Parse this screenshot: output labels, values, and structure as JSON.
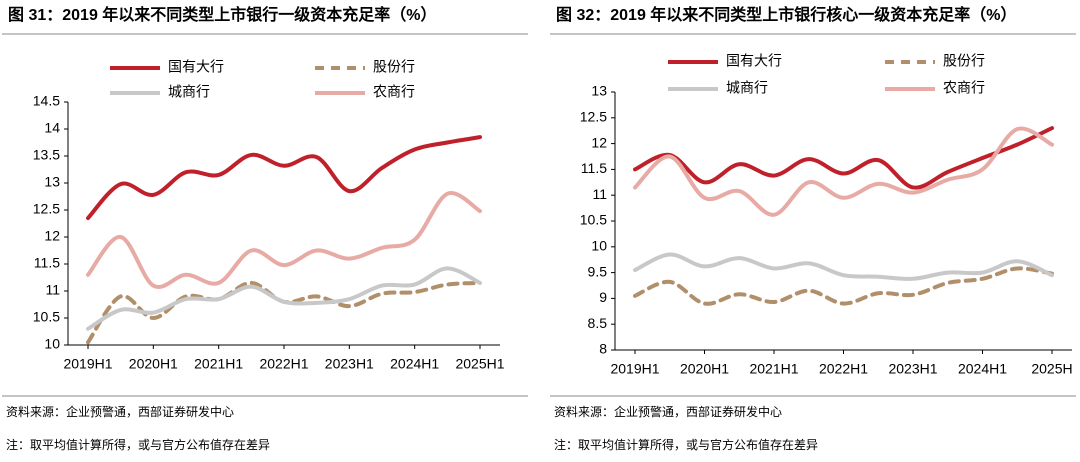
{
  "chart_data": [
    {
      "type": "line",
      "title": "图 31：2019 年以来不同类型上市银行一级资本充足率（%）",
      "categories": [
        "2019H1",
        null,
        "2020H1",
        null,
        "2021H1",
        null,
        "2022H1",
        null,
        "2023H1",
        null,
        "2024H1",
        null,
        "2025H1"
      ],
      "series": [
        {
          "name": "国有大行",
          "color": "#c0202a",
          "dash": false,
          "values": [
            12.35,
            12.98,
            12.78,
            13.2,
            13.15,
            13.52,
            13.32,
            13.48,
            12.85,
            13.28,
            13.62,
            13.75,
            13.85
          ]
        },
        {
          "name": "股份行",
          "color": "#b08f6a",
          "dash": true,
          "values": [
            10.05,
            10.9,
            10.5,
            10.9,
            10.85,
            11.15,
            10.8,
            10.9,
            10.72,
            10.95,
            10.98,
            11.12,
            11.15
          ]
        },
        {
          "name": "城商行",
          "color": "#c8c8c8",
          "dash": false,
          "values": [
            10.3,
            10.65,
            10.6,
            10.85,
            10.85,
            11.08,
            10.8,
            10.78,
            10.85,
            11.1,
            11.12,
            11.42,
            11.15
          ]
        },
        {
          "name": "农商行",
          "color": "#e8aaa4",
          "dash": false,
          "values": [
            11.3,
            12.0,
            11.1,
            11.3,
            11.15,
            11.75,
            11.48,
            11.75,
            11.6,
            11.8,
            11.95,
            12.8,
            12.48
          ]
        }
      ],
      "ylim": [
        10,
        14.5
      ],
      "yticks": [
        10,
        10.5,
        11,
        11.5,
        12,
        12.5,
        13,
        13.5,
        14,
        14.5
      ],
      "grid": false,
      "legend": "top",
      "source": "资料来源：企业预警通，西部证券研发中心",
      "note": "注：取平均值计算所得，或与官方公布值存在差异"
    },
    {
      "type": "line",
      "title": "图 32：2019 年以来不同类型上市银行核心一级资本充足率（%）",
      "categories": [
        "2019H1",
        null,
        "2020H1",
        null,
        "2021H1",
        null,
        "2022H1",
        null,
        "2023H1",
        null,
        "2024H1",
        null,
        "2025H"
      ],
      "series": [
        {
          "name": "国有大行",
          "color": "#c0202a",
          "dash": false,
          "values": [
            11.5,
            11.78,
            11.25,
            11.6,
            11.38,
            11.7,
            11.42,
            11.68,
            11.15,
            11.45,
            11.72,
            11.98,
            12.3
          ]
        },
        {
          "name": "股份行",
          "color": "#b08f6a",
          "dash": true,
          "values": [
            9.05,
            9.32,
            8.9,
            9.08,
            8.93,
            9.15,
            8.9,
            9.1,
            9.07,
            9.3,
            9.38,
            9.58,
            9.48
          ]
        },
        {
          "name": "城商行",
          "color": "#c8c8c8",
          "dash": false,
          "values": [
            9.55,
            9.85,
            9.62,
            9.78,
            9.58,
            9.68,
            9.45,
            9.42,
            9.38,
            9.5,
            9.5,
            9.72,
            9.45
          ]
        },
        {
          "name": "农商行",
          "color": "#e8aaa4",
          "dash": false,
          "values": [
            11.15,
            11.75,
            10.95,
            11.08,
            10.62,
            11.25,
            10.95,
            11.22,
            11.05,
            11.3,
            11.5,
            12.28,
            11.98
          ]
        }
      ],
      "ylim": [
        8,
        13
      ],
      "yticks": [
        8,
        8.5,
        9,
        9.5,
        10,
        10.5,
        11,
        11.5,
        12,
        12.5,
        13
      ],
      "grid": false,
      "legend": "top",
      "source": "资料来源：企业预警通，西部证券研发中心",
      "note": "注：取平均值计算所得，或与官方公布值存在差异"
    }
  ]
}
